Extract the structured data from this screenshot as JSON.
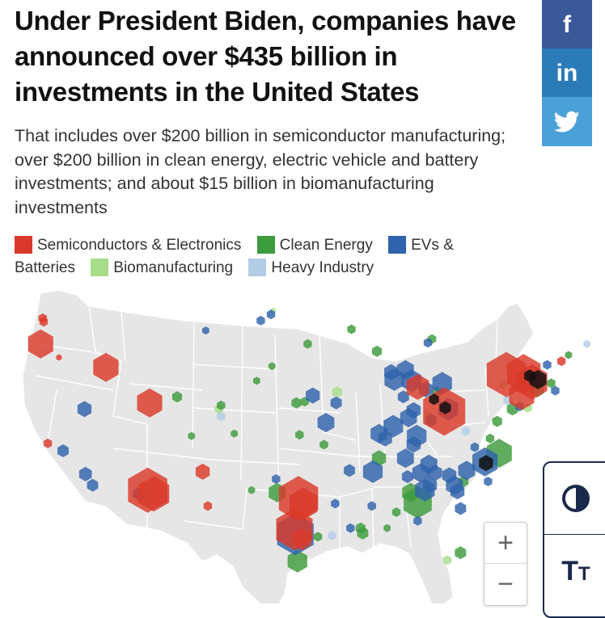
{
  "headline": "Under President Biden, companies have announced over $435 billion in investments in the United States",
  "subheadline": "That includes over $200 billion in semiconductor manufacturing; over $200 billion in clean energy, electric vehicle and battery investments; and about $15 billion in biomanufacturing investments",
  "legend": [
    {
      "label": "Semiconductors & Electronics",
      "color": "#d9392a"
    },
    {
      "label": "Clean Energy",
      "color": "#3d9b3d"
    },
    {
      "label": "EVs & Batteries",
      "color": "#2f63ab"
    },
    {
      "label": "Biomanufacturing",
      "color": "#a8dc8a"
    },
    {
      "label": "Heavy Industry",
      "color": "#b3cde6"
    }
  ],
  "share": {
    "facebook_icon": "facebook-icon",
    "linkedin_icon": "linkedin-icon",
    "twitter_icon": "twitter-icon",
    "facebook_glyph": "f",
    "linkedin_glyph": "in"
  },
  "zoom": {
    "in": "+",
    "out": "−"
  },
  "accessibility": {
    "contrast_icon": "contrast-icon",
    "text_size_icon": "text-size-icon",
    "text_big": "T",
    "text_small": "T"
  },
  "map_style": {
    "land": "#e6e6e6",
    "borders": "#ffffff"
  },
  "investments": [
    {
      "c": "s",
      "lon": -122.4,
      "lat": 47.6,
      "size": 6
    },
    {
      "c": "s",
      "lon": -122.3,
      "lat": 47.3,
      "size": 6
    },
    {
      "c": "s",
      "lon": -122.6,
      "lat": 45.5,
      "size": 18
    },
    {
      "c": "s",
      "lon": -120.8,
      "lat": 44.4,
      "size": 4
    },
    {
      "c": "s",
      "lon": -116.2,
      "lat": 43.6,
      "size": 18
    },
    {
      "c": "s",
      "lon": -111.9,
      "lat": 40.7,
      "size": 18
    },
    {
      "c": "e",
      "lon": -118.3,
      "lat": 40.2,
      "size": 10
    },
    {
      "c": "e",
      "lon": -120.4,
      "lat": 36.8,
      "size": 8
    },
    {
      "c": "s",
      "lon": -121.9,
      "lat": 37.4,
      "size": 6
    },
    {
      "c": "e",
      "lon": -118.2,
      "lat": 34.9,
      "size": 9
    },
    {
      "c": "e",
      "lon": -117.5,
      "lat": 34.0,
      "size": 8
    },
    {
      "c": "s",
      "lon": -112.1,
      "lat": 33.6,
      "size": 28
    },
    {
      "c": "s",
      "lon": -111.5,
      "lat": 33.3,
      "size": 22
    },
    {
      "c": "e",
      "lon": -113.0,
      "lat": 33.3,
      "size": 8
    },
    {
      "c": "s",
      "lon": -106.7,
      "lat": 35.1,
      "size": 10
    },
    {
      "c": "s",
      "lon": -106.2,
      "lat": 32.3,
      "size": 6
    },
    {
      "c": "g",
      "lon": -109.2,
      "lat": 41.2,
      "size": 7
    },
    {
      "c": "c",
      "lon": -104.9,
      "lat": 39.6,
      "size": 6
    },
    {
      "c": "g",
      "lon": -104.9,
      "lat": 40.5,
      "size": 6
    },
    {
      "c": "b",
      "lon": -105.1,
      "lat": 40.2,
      "size": 6
    },
    {
      "c": "g",
      "lon": -103.6,
      "lat": 38.2,
      "size": 5
    },
    {
      "c": "g",
      "lon": -107.8,
      "lat": 38.0,
      "size": 5
    },
    {
      "c": "e",
      "lon": -101.0,
      "lat": 47.4,
      "size": 6
    },
    {
      "c": "e",
      "lon": -100.0,
      "lat": 47.9,
      "size": 6
    },
    {
      "c": "e",
      "lon": -106.4,
      "lat": 46.6,
      "size": 5
    },
    {
      "c": "b",
      "lon": -99.8,
      "lat": 48.2,
      "size": 4
    },
    {
      "c": "g",
      "lon": -99.9,
      "lat": 43.7,
      "size": 5
    },
    {
      "c": "g",
      "lon": -96.4,
      "lat": 45.5,
      "size": 6
    },
    {
      "c": "g",
      "lon": -96.7,
      "lat": 40.8,
      "size": 6
    },
    {
      "c": "g",
      "lon": -97.5,
      "lat": 40.7,
      "size": 7
    },
    {
      "c": "g",
      "lon": -101.4,
      "lat": 42.5,
      "size": 5
    },
    {
      "c": "e",
      "lon": -95.9,
      "lat": 41.3,
      "size": 10
    },
    {
      "c": "e",
      "lon": -94.6,
      "lat": 39.1,
      "size": 12
    },
    {
      "c": "b",
      "lon": -93.5,
      "lat": 41.6,
      "size": 7
    },
    {
      "c": "e",
      "lon": -93.6,
      "lat": 40.7,
      "size": 8
    },
    {
      "c": "g",
      "lon": -97.2,
      "lat": 38.1,
      "size": 6
    },
    {
      "c": "g",
      "lon": -94.8,
      "lat": 37.3,
      "size": 6
    },
    {
      "c": "s",
      "lon": -97.3,
      "lat": 32.9,
      "size": 28
    },
    {
      "c": "s",
      "lon": -96.8,
      "lat": 32.5,
      "size": 20
    },
    {
      "c": "s",
      "lon": -97.7,
      "lat": 30.4,
      "size": 26
    },
    {
      "c": "e",
      "lon": -97.6,
      "lat": 30.0,
      "size": 26
    },
    {
      "c": "s",
      "lon": -97.0,
      "lat": 29.6,
      "size": 14
    },
    {
      "c": "g",
      "lon": -99.4,
      "lat": 33.4,
      "size": 12
    },
    {
      "c": "e",
      "lon": -99.5,
      "lat": 34.5,
      "size": 6
    },
    {
      "c": "g",
      "lon": -101.9,
      "lat": 33.6,
      "size": 5
    },
    {
      "c": "g",
      "lon": -97.4,
      "lat": 27.8,
      "size": 14
    },
    {
      "c": "g",
      "lon": -95.4,
      "lat": 29.8,
      "size": 6
    },
    {
      "c": "c",
      "lon": -94.0,
      "lat": 29.9,
      "size": 6
    },
    {
      "c": "e",
      "lon": -93.7,
      "lat": 32.5,
      "size": 6
    },
    {
      "c": "e",
      "lon": -92.2,
      "lat": 30.5,
      "size": 6
    },
    {
      "c": "g",
      "lon": -91.2,
      "lat": 30.5,
      "size": 7
    },
    {
      "c": "g",
      "lon": -91.0,
      "lat": 30.1,
      "size": 8
    },
    {
      "c": "e",
      "lon": -90.1,
      "lat": 32.3,
      "size": 6
    },
    {
      "c": "g",
      "lon": -88.6,
      "lat": 30.5,
      "size": 5
    },
    {
      "c": "e",
      "lon": -92.3,
      "lat": 35.2,
      "size": 8
    },
    {
      "c": "e",
      "lon": -90.0,
      "lat": 35.1,
      "size": 14
    },
    {
      "c": "g",
      "lon": -89.4,
      "lat": 36.2,
      "size": 10
    },
    {
      "c": "e",
      "lon": -88.8,
      "lat": 37.8,
      "size": 10
    },
    {
      "c": "e",
      "lon": -89.4,
      "lat": 38.2,
      "size": 12
    },
    {
      "c": "e",
      "lon": -88.0,
      "lat": 38.8,
      "size": 14
    },
    {
      "c": "e",
      "lon": -86.5,
      "lat": 39.5,
      "size": 12
    },
    {
      "c": "e",
      "lon": -86.0,
      "lat": 40.1,
      "size": 10
    },
    {
      "c": "e",
      "lon": -87.0,
      "lat": 41.2,
      "size": 8
    },
    {
      "c": "e",
      "lon": -88.2,
      "lat": 43.2,
      "size": 10
    },
    {
      "c": "e",
      "lon": -87.9,
      "lat": 42.6,
      "size": 14
    },
    {
      "c": "e",
      "lon": -86.8,
      "lat": 43.4,
      "size": 12
    },
    {
      "c": "e",
      "lon": -86.2,
      "lat": 42.5,
      "size": 14
    },
    {
      "c": "g",
      "lon": -89.6,
      "lat": 44.9,
      "size": 7
    },
    {
      "c": "g",
      "lon": -92.1,
      "lat": 46.7,
      "size": 6
    },
    {
      "c": "e",
      "lon": -84.6,
      "lat": 45.6,
      "size": 6
    },
    {
      "c": "g",
      "lon": -84.2,
      "lat": 45.9,
      "size": 6
    },
    {
      "c": "s",
      "lon": -85.6,
      "lat": 42.0,
      "size": 16
    },
    {
      "c": "s",
      "lon": -83.0,
      "lat": 40.0,
      "size": 30
    },
    {
      "c": "e",
      "lon": -82.6,
      "lat": 40.2,
      "size": 14
    },
    {
      "c": "k",
      "lon": -82.9,
      "lat": 40.3,
      "size": 8
    },
    {
      "c": "k",
      "lon": -84.0,
      "lat": 41.0,
      "size": 7
    },
    {
      "c": "b",
      "lon": -84.6,
      "lat": 39.7,
      "size": 5
    },
    {
      "c": "e",
      "lon": -84.3,
      "lat": 39.3,
      "size": 8
    },
    {
      "c": "g",
      "lon": -83.7,
      "lat": 41.6,
      "size": 7
    },
    {
      "c": "e",
      "lon": -83.2,
      "lat": 42.3,
      "size": 14
    },
    {
      "c": "e",
      "lon": -84.8,
      "lat": 41.8,
      "size": 10
    },
    {
      "c": "e",
      "lon": -85.7,
      "lat": 38.0,
      "size": 14
    },
    {
      "c": "e",
      "lon": -86.0,
      "lat": 37.3,
      "size": 10
    },
    {
      "c": "e",
      "lon": -86.8,
      "lat": 36.2,
      "size": 12
    },
    {
      "c": "e",
      "lon": -85.3,
      "lat": 35.0,
      "size": 12
    },
    {
      "c": "e",
      "lon": -84.5,
      "lat": 35.7,
      "size": 12
    },
    {
      "c": "e",
      "lon": -83.9,
      "lat": 35.0,
      "size": 10
    },
    {
      "c": "e",
      "lon": -84.4,
      "lat": 34.0,
      "size": 10
    },
    {
      "c": "e",
      "lon": -84.9,
      "lat": 33.6,
      "size": 14
    },
    {
      "c": "g",
      "lon": -85.6,
      "lat": 32.6,
      "size": 20
    },
    {
      "c": "g",
      "lon": -86.3,
      "lat": 33.4,
      "size": 12
    },
    {
      "c": "e",
      "lon": -86.6,
      "lat": 34.7,
      "size": 8
    },
    {
      "c": "g",
      "lon": -87.7,
      "lat": 31.8,
      "size": 6
    },
    {
      "c": "e",
      "lon": -85.6,
      "lat": 31.1,
      "size": 6
    },
    {
      "c": "e",
      "lon": -82.5,
      "lat": 34.8,
      "size": 10
    },
    {
      "c": "e",
      "lon": -82.0,
      "lat": 34.0,
      "size": 12
    },
    {
      "c": "e",
      "lon": -81.7,
      "lat": 33.5,
      "size": 10
    },
    {
      "c": "e",
      "lon": -80.8,
      "lat": 35.2,
      "size": 12
    },
    {
      "c": "e",
      "lon": -81.4,
      "lat": 32.1,
      "size": 8
    },
    {
      "c": "g",
      "lon": -81.1,
      "lat": 34.3,
      "size": 7
    },
    {
      "c": "e",
      "lon": -79.0,
      "lat": 35.9,
      "size": 18
    },
    {
      "c": "k",
      "lon": -78.9,
      "lat": 35.8,
      "size": 10
    },
    {
      "c": "g",
      "lon": -77.6,
      "lat": 36.6,
      "size": 18
    },
    {
      "c": "e",
      "lon": -78.7,
      "lat": 34.3,
      "size": 6
    },
    {
      "c": "g",
      "lon": -78.5,
      "lat": 37.8,
      "size": 6
    },
    {
      "c": "e",
      "lon": -80.0,
      "lat": 37.1,
      "size": 6
    },
    {
      "c": "c",
      "lon": -80.9,
      "lat": 38.4,
      "size": 6
    },
    {
      "c": "g",
      "lon": -77.8,
      "lat": 39.2,
      "size": 7
    },
    {
      "c": "b",
      "lon": -82.7,
      "lat": 27.9,
      "size": 6
    },
    {
      "c": "g",
      "lon": -81.4,
      "lat": 28.5,
      "size": 8
    },
    {
      "c": "s",
      "lon": -76.9,
      "lat": 43.0,
      "size": 28
    },
    {
      "c": "s",
      "lon": -75.2,
      "lat": 43.1,
      "size": 24
    },
    {
      "c": "s",
      "lon": -74.4,
      "lat": 42.4,
      "size": 22
    },
    {
      "c": "s",
      "lon": -75.4,
      "lat": 41.3,
      "size": 18
    },
    {
      "c": "k",
      "lon": -73.8,
      "lat": 42.6,
      "size": 12
    },
    {
      "c": "k",
      "lon": -74.6,
      "lat": 42.9,
      "size": 8
    },
    {
      "c": "g",
      "lon": -73.9,
      "lat": 41.8,
      "size": 10
    },
    {
      "c": "g",
      "lon": -76.3,
      "lat": 40.2,
      "size": 8
    },
    {
      "c": "e",
      "lon": -75.6,
      "lat": 40.4,
      "size": 6
    },
    {
      "c": "b",
      "lon": -74.8,
      "lat": 40.3,
      "size": 6
    },
    {
      "c": "c",
      "lon": -76.7,
      "lat": 40.9,
      "size": 7
    },
    {
      "c": "e",
      "lon": -72.9,
      "lat": 43.8,
      "size": 6
    },
    {
      "c": "s",
      "lon": -71.5,
      "lat": 44.1,
      "size": 6
    },
    {
      "c": "g",
      "lon": -70.8,
      "lat": 44.6,
      "size": 5
    },
    {
      "c": "c",
      "lon": -69.0,
      "lat": 45.5,
      "size": 5
    },
    {
      "c": "g",
      "lon": -72.5,
      "lat": 42.3,
      "size": 6
    },
    {
      "c": "e",
      "lon": -72.1,
      "lat": 41.7,
      "size": 6
    },
    {
      "c": "b",
      "lon": -77.2,
      "lat": 42.2,
      "size": 6
    }
  ]
}
